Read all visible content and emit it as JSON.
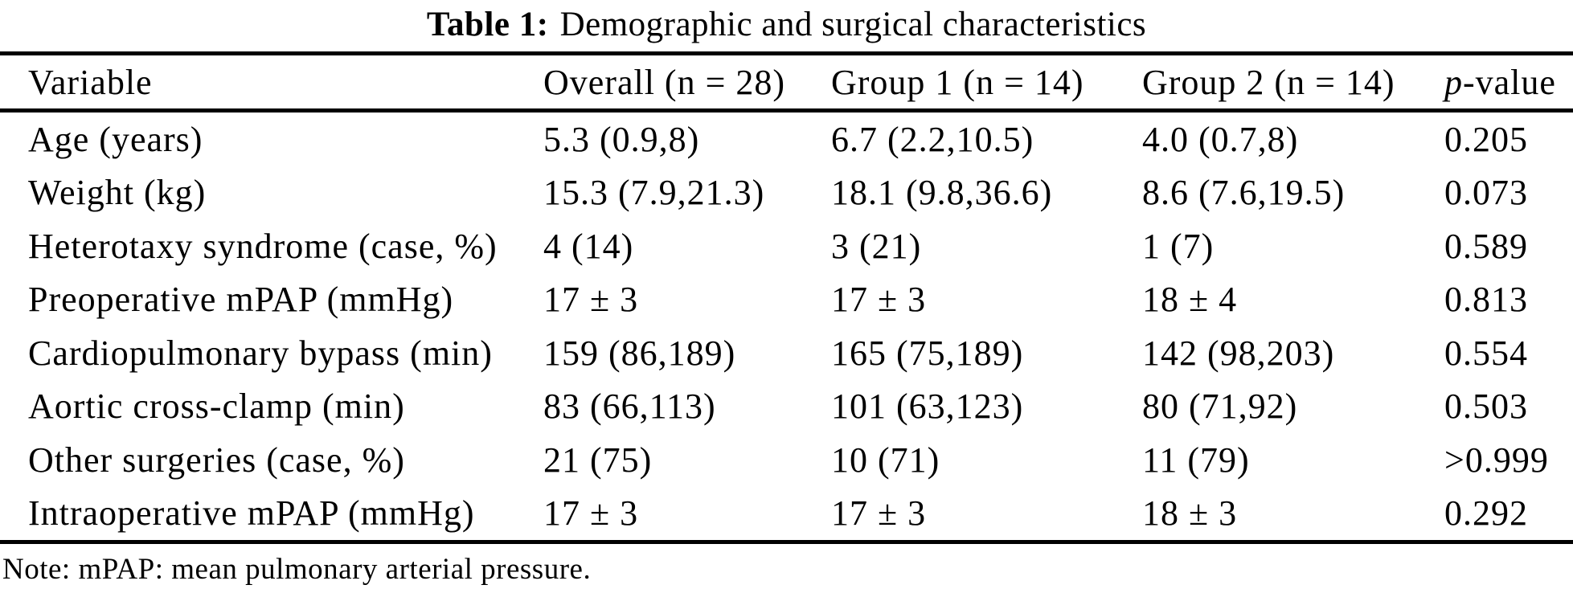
{
  "page": {
    "caption_label": "Table 1:",
    "caption_text": "Demographic and surgical characteristics",
    "note": "Note: mPAP: mean pulmonary arterial pressure."
  },
  "colors": {
    "text": "#000000",
    "background": "#ffffff",
    "rule": "#000000"
  },
  "table": {
    "headers": {
      "variable": "Variable",
      "overall": "Overall (n = 28)",
      "group1": "Group 1 (n = 14)",
      "group2": "Group 2 (n = 14)",
      "pvalue_italic": "p",
      "pvalue_rest": "-value"
    },
    "rows": [
      {
        "variable": "Age (years)",
        "overall": "5.3 (0.9,8)",
        "group1": "6.7 (2.2,10.5)",
        "group2": "4.0 (0.7,8)",
        "p": "0.205"
      },
      {
        "variable": "Weight (kg)",
        "overall": "15.3 (7.9,21.3)",
        "group1": "18.1 (9.8,36.6)",
        "group2": "8.6 (7.6,19.5)",
        "p": "0.073"
      },
      {
        "variable": "Heterotaxy syndrome (case, %)",
        "overall": "4 (14)",
        "group1": "3 (21)",
        "group2": "1 (7)",
        "p": "0.589"
      },
      {
        "variable": "Preoperative mPAP (mmHg)",
        "overall": "17 ± 3",
        "group1": "17 ± 3",
        "group2": "18 ± 4",
        "p": "0.813"
      },
      {
        "variable": "Cardiopulmonary bypass (min)",
        "overall": "159 (86,189)",
        "group1": "165 (75,189)",
        "group2": "142 (98,203)",
        "p": "0.554"
      },
      {
        "variable": "Aortic cross-clamp (min)",
        "overall": "83 (66,113)",
        "group1": "101 (63,123)",
        "group2": "80 (71,92)",
        "p": "0.503"
      },
      {
        "variable": "Other surgeries (case, %)",
        "overall": "21 (75)",
        "group1": "10 (71)",
        "group2": "11 (79)",
        "p": ">0.999"
      },
      {
        "variable": "Intraoperative mPAP (mmHg)",
        "overall": "17 ± 3",
        "group1": "17 ± 3",
        "group2": "18 ± 3",
        "p": "0.292"
      }
    ]
  }
}
